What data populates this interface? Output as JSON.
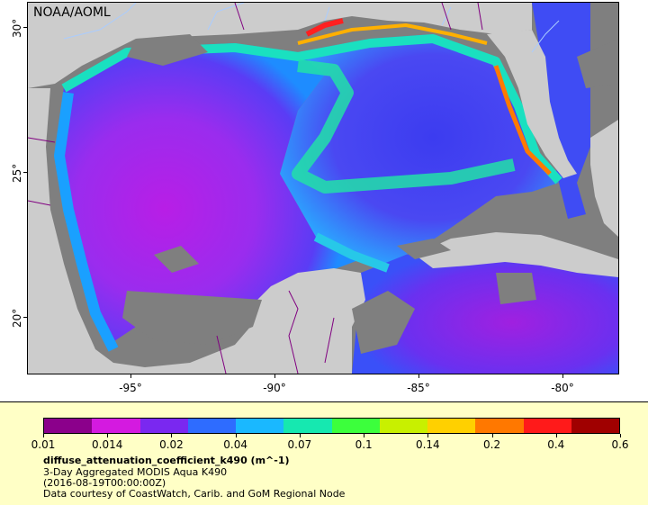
{
  "map": {
    "credit": "NOAA/AOML",
    "lat_ticks": [
      "30°",
      "25°",
      "20°"
    ],
    "lon_ticks": [
      "-95°",
      "-90°",
      "-85°",
      "-80°"
    ],
    "lat_range": [
      18,
      31
    ],
    "lon_range": [
      -98,
      -78.5
    ],
    "colors": {
      "land": "#cccccc",
      "no_data": "#808080",
      "borders": "#800080",
      "rivers": "#aaccff"
    }
  },
  "legend": {
    "colorbar_ticks": [
      "0.01",
      "0.014",
      "0.02",
      "0.04",
      "0.07",
      "0.1",
      "0.14",
      "0.2",
      "0.4",
      "0.6"
    ],
    "colorbar_colors": [
      "#8b008b",
      "#d41ae0",
      "#7a28f0",
      "#2e6cff",
      "#1ab8ff",
      "#16e8b0",
      "#3cff3c",
      "#c8f000",
      "#ffd000",
      "#ff7800",
      "#ff1a1a",
      "#a00000"
    ],
    "variable": "diffuse_attenuation_coefficient_k490 (m^-1)",
    "subtitle": "3-Day Aggregated MODIS Aqua K490",
    "time": "(2016-08-19T00:00:00Z)",
    "courtesy": "Data courtesy of CoastWatch, Carib. and GoM Regional Node"
  }
}
